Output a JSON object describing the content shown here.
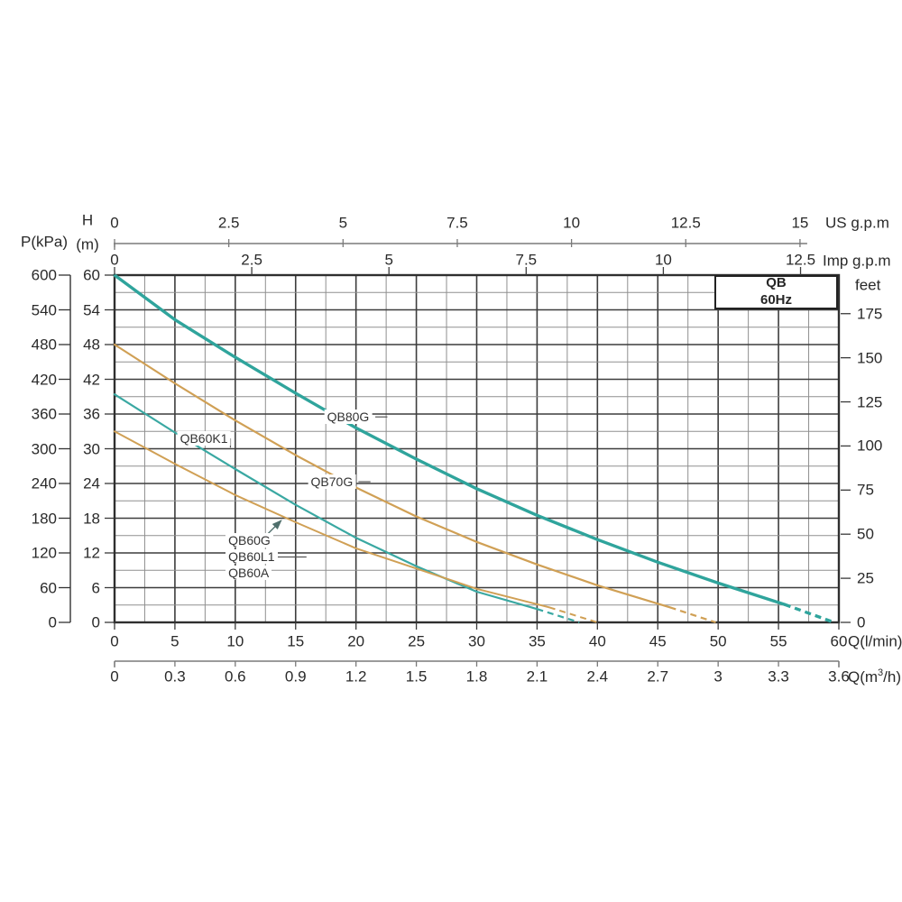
{
  "header": {
    "pressure_axis_label": "P(kPa)",
    "head_axis_label_line1": "H",
    "head_axis_label_line2": "(m)",
    "us_axis_unit": "US  g.p.m",
    "imp_axis_unit": "Imp  g.p.m",
    "feet_axis_unit": "feet",
    "flow_lmin_unit": "Q(l/min)",
    "flow_m3h_prefix": "Q(m",
    "flow_m3h_sup": "3",
    "flow_m3h_suffix": "/h)"
  },
  "badge": {
    "line1": "QB",
    "line2": "60Hz"
  },
  "axes": {
    "kpa_ticks": [
      "600",
      "540",
      "480",
      "420",
      "360",
      "300",
      "240",
      "180",
      "120",
      "60",
      "0"
    ],
    "h_m_ticks": [
      "60",
      "54",
      "48",
      "42",
      "36",
      "30",
      "24",
      "18",
      "12",
      "6",
      "0"
    ],
    "us_gpm_ticks": [
      "0",
      "2.5",
      "5",
      "7.5",
      "10",
      "12.5",
      "15"
    ],
    "imp_gpm_ticks": [
      "0",
      "2.5",
      "5",
      "7.5",
      "10",
      "12.5"
    ],
    "feet_ticks": [
      "175",
      "150",
      "125",
      "100",
      "75",
      "50",
      "25",
      "0"
    ],
    "lmin_ticks": [
      "0",
      "5",
      "10",
      "15",
      "20",
      "25",
      "30",
      "35",
      "40",
      "45",
      "50",
      "55",
      "60"
    ],
    "m3h_ticks": [
      "0",
      "0.3",
      "0.6",
      "0.9",
      "1.2",
      "1.5",
      "1.8",
      "2.1",
      "2.4",
      "2.7",
      "3",
      "3.3",
      "3.6"
    ]
  },
  "chart_data": {
    "type": "line",
    "title": "QB 60Hz",
    "xlabel": "Q (l/min)",
    "ylabel": "H (m)",
    "xlim": [
      0,
      60
    ],
    "ylim": [
      0,
      60
    ],
    "x_minor_step": 2.5,
    "x_major_step": 5,
    "y_minor_step": 3,
    "y_major_step": 6,
    "grid": true,
    "legend_position": "inline-labels",
    "colors": {
      "teal": "#2fa49c",
      "orange": "#d0a055",
      "grid_major": "#3d3d3d",
      "grid_minor": "#8f8f8f",
      "border": "#2f2f2f",
      "axis_gray": "#7a7a7a",
      "text": "#262626"
    },
    "series": [
      {
        "name": "QB80G",
        "color": "#2fa49c",
        "width": 3.4,
        "solid": [
          [
            0,
            60
          ],
          [
            5,
            52.3
          ],
          [
            10,
            45.8
          ],
          [
            15,
            39.6
          ],
          [
            20,
            33.6
          ],
          [
            25,
            28.2
          ],
          [
            30,
            23.1
          ],
          [
            35,
            18.5
          ],
          [
            40,
            14.3
          ],
          [
            45,
            10.4
          ],
          [
            50,
            6.8
          ],
          [
            55.5,
            3.1
          ]
        ],
        "dashed": [
          [
            55.5,
            3.1
          ],
          [
            59.6,
            0
          ]
        ]
      },
      {
        "name": "QB70G",
        "color": "#d0a055",
        "width": 2.2,
        "solid": [
          [
            0,
            48
          ],
          [
            5,
            41.3
          ],
          [
            10,
            34.9
          ],
          [
            15,
            28.9
          ],
          [
            20,
            23.3
          ],
          [
            25,
            18.3
          ],
          [
            30,
            13.9
          ],
          [
            35,
            10
          ],
          [
            40,
            6.4
          ],
          [
            46,
            2.6
          ]
        ],
        "dashed": [
          [
            46,
            2.6
          ],
          [
            49.8,
            0
          ]
        ]
      },
      {
        "name": "QB60K1",
        "color": "#3aa8a2",
        "width": 2.2,
        "solid": [
          [
            0,
            39.4
          ],
          [
            5,
            32.8
          ],
          [
            10,
            26.5
          ],
          [
            15,
            20.3
          ],
          [
            20,
            14.6
          ],
          [
            25,
            9.7
          ],
          [
            30,
            5.3
          ],
          [
            35,
            2.3
          ]
        ],
        "dashed": [
          [
            35,
            2.3
          ],
          [
            38.5,
            0
          ]
        ]
      },
      {
        "name": "QB60G / QB60L1 / QB60A",
        "color": "#d0a055",
        "width": 2,
        "solid": [
          [
            0,
            33
          ],
          [
            5,
            27.4
          ],
          [
            10,
            22
          ],
          [
            15,
            17.3
          ],
          [
            20,
            12.8
          ],
          [
            25,
            9.3
          ],
          [
            30,
            5.8
          ],
          [
            36,
            2.6
          ]
        ],
        "dashed": [
          [
            36,
            2.6
          ],
          [
            40,
            0
          ]
        ]
      }
    ],
    "labels": [
      {
        "text": "QB80G",
        "q": 19.35,
        "h": 35.5,
        "align": "center",
        "leader": [
          [
            21.6,
            35.5
          ],
          [
            22.6,
            35.5
          ]
        ]
      },
      {
        "text": "QB60K1",
        "q": 7.4,
        "h": 31.8,
        "align": "center",
        "leader": [
          [
            9.6,
            31.8
          ],
          [
            9.6,
            30.2
          ]
        ]
      },
      {
        "text": "QB70G",
        "q": 18.0,
        "h": 24.3,
        "align": "center",
        "leader": [
          [
            20.2,
            24.3
          ],
          [
            21.2,
            24.3
          ]
        ]
      },
      {
        "text": "QB60G",
        "q": 9.2,
        "h": 14.2,
        "align": "left",
        "leader": null
      },
      {
        "text": "QB60L1",
        "q": 9.2,
        "h": 11.3,
        "align": "left",
        "leader": [
          [
            13.3,
            11.3
          ],
          [
            15.9,
            11.3
          ]
        ]
      },
      {
        "text": "QB60A",
        "q": 9.2,
        "h": 8.5,
        "align": "left",
        "leader": null
      }
    ],
    "annotation_arrow": {
      "from_q": 12.6,
      "from_h": 15.1,
      "to_q": 13.8,
      "to_h": 17.6
    }
  }
}
